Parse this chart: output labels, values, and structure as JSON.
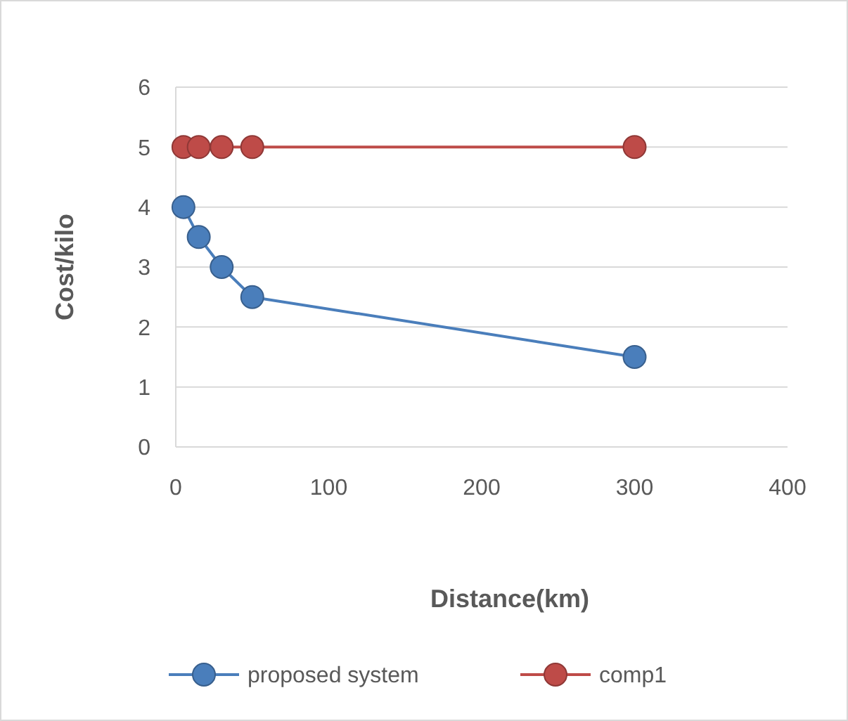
{
  "chart_data": {
    "type": "line",
    "xlabel": "Distance(km)",
    "ylabel": "Cost/kilo",
    "x": [
      5,
      15,
      30,
      50,
      300
    ],
    "series": [
      {
        "name": "proposed system",
        "color": "#4a7ebb",
        "values": [
          4,
          3.5,
          3,
          2.5,
          1.5
        ]
      },
      {
        "name": "comp1",
        "color": "#be4b48",
        "values": [
          5,
          5,
          5,
          5,
          5
        ]
      }
    ],
    "xlim": [
      0,
      400
    ],
    "xticks": [
      0,
      100,
      200,
      300,
      400
    ],
    "ylim": [
      0,
      6
    ],
    "yticks": [
      0,
      1,
      2,
      3,
      4,
      5,
      6
    ],
    "grid": "y",
    "legend": "bottom",
    "marker": "circle",
    "line_style": "solid"
  }
}
